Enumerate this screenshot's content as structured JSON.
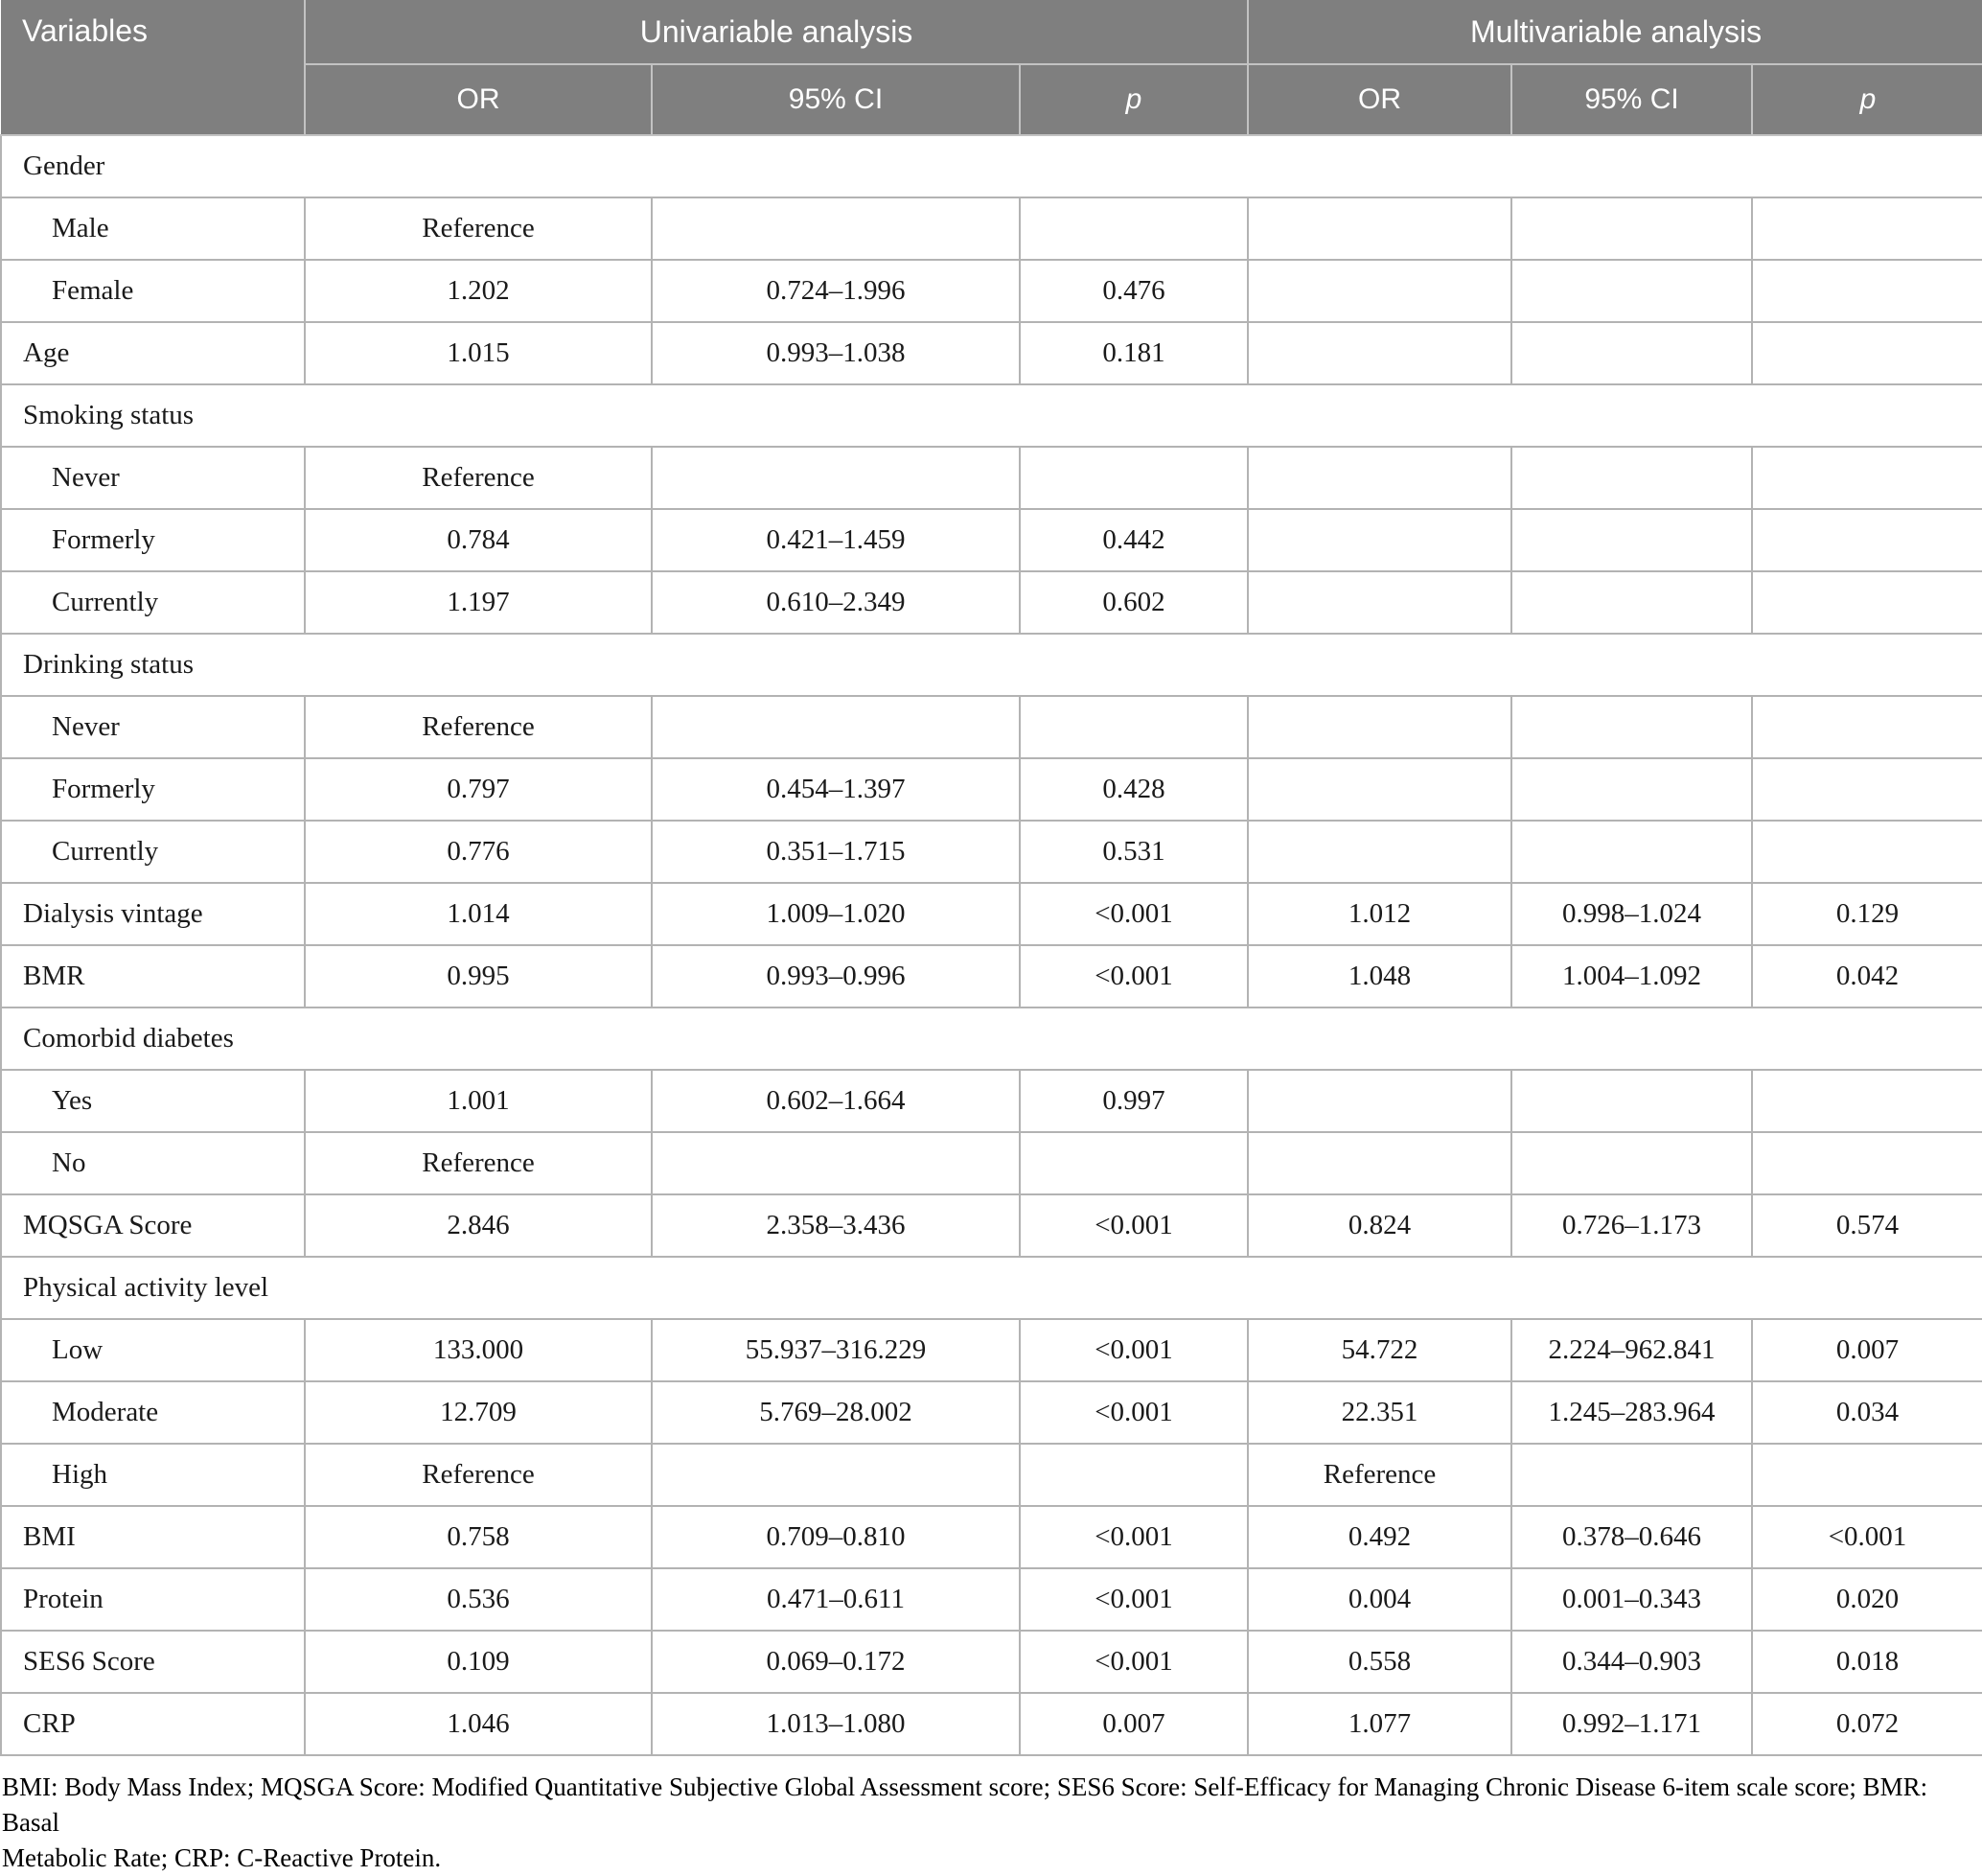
{
  "table": {
    "header": {
      "variables": "Variables",
      "group1": "Univariable analysis",
      "group2": "Multivariable analysis",
      "sub": {
        "or": "OR",
        "ci": "95% CI",
        "p": "p"
      }
    },
    "rows": [
      {
        "type": "section",
        "label": "Gender"
      },
      {
        "type": "data",
        "indent": true,
        "label": "Male",
        "cells": [
          "Reference",
          "",
          "",
          "",
          "",
          ""
        ]
      },
      {
        "type": "data",
        "indent": true,
        "label": "Female",
        "cells": [
          "1.202",
          "0.724–1.996",
          "0.476",
          "",
          "",
          ""
        ]
      },
      {
        "type": "data",
        "indent": false,
        "label": "Age",
        "cells": [
          "1.015",
          "0.993–1.038",
          "0.181",
          "",
          "",
          ""
        ]
      },
      {
        "type": "section",
        "label": "Smoking status"
      },
      {
        "type": "data",
        "indent": true,
        "label": "Never",
        "cells": [
          "Reference",
          "",
          "",
          "",
          "",
          ""
        ]
      },
      {
        "type": "data",
        "indent": true,
        "label": "Formerly",
        "cells": [
          "0.784",
          "0.421–1.459",
          "0.442",
          "",
          "",
          ""
        ]
      },
      {
        "type": "data",
        "indent": true,
        "label": "Currently",
        "cells": [
          "1.197",
          "0.610–2.349",
          "0.602",
          "",
          "",
          ""
        ]
      },
      {
        "type": "section",
        "label": "Drinking status"
      },
      {
        "type": "data",
        "indent": true,
        "label": "Never",
        "cells": [
          "Reference",
          "",
          "",
          "",
          "",
          ""
        ]
      },
      {
        "type": "data",
        "indent": true,
        "label": "Formerly",
        "cells": [
          "0.797",
          "0.454–1.397",
          "0.428",
          "",
          "",
          ""
        ]
      },
      {
        "type": "data",
        "indent": true,
        "label": "Currently",
        "cells": [
          "0.776",
          "0.351–1.715",
          "0.531",
          "",
          "",
          ""
        ]
      },
      {
        "type": "data",
        "indent": false,
        "label": "Dialysis vintage",
        "cells": [
          "1.014",
          "1.009–1.020",
          "<0.001",
          "1.012",
          "0.998–1.024",
          "0.129"
        ]
      },
      {
        "type": "data",
        "indent": false,
        "label": "BMR",
        "cells": [
          "0.995",
          "0.993–0.996",
          "<0.001",
          "1.048",
          "1.004–1.092",
          "0.042"
        ]
      },
      {
        "type": "section",
        "label": "Comorbid diabetes"
      },
      {
        "type": "data",
        "indent": true,
        "label": "Yes",
        "cells": [
          "1.001",
          "0.602–1.664",
          "0.997",
          "",
          "",
          ""
        ]
      },
      {
        "type": "data",
        "indent": true,
        "label": "No",
        "cells": [
          "Reference",
          "",
          "",
          "",
          "",
          ""
        ]
      },
      {
        "type": "data",
        "indent": false,
        "label": "MQSGA Score",
        "cells": [
          "2.846",
          "2.358–3.436",
          "<0.001",
          "0.824",
          "0.726–1.173",
          "0.574"
        ]
      },
      {
        "type": "section",
        "label": "Physical activity level"
      },
      {
        "type": "data",
        "indent": true,
        "label": "Low",
        "cells": [
          "133.000",
          "55.937–316.229",
          "<0.001",
          "54.722",
          "2.224–962.841",
          "0.007"
        ]
      },
      {
        "type": "data",
        "indent": true,
        "label": "Moderate",
        "cells": [
          "12.709",
          "5.769–28.002",
          "<0.001",
          "22.351",
          "1.245–283.964",
          "0.034"
        ]
      },
      {
        "type": "data",
        "indent": true,
        "label": "High",
        "cells": [
          "Reference",
          "",
          "",
          "Reference",
          "",
          ""
        ]
      },
      {
        "type": "data",
        "indent": false,
        "label": "BMI",
        "cells": [
          "0.758",
          "0.709–0.810",
          "<0.001",
          "0.492",
          "0.378–0.646",
          "<0.001"
        ]
      },
      {
        "type": "data",
        "indent": false,
        "label": "Protein",
        "cells": [
          "0.536",
          "0.471–0.611",
          "<0.001",
          "0.004",
          "0.001–0.343",
          "0.020"
        ]
      },
      {
        "type": "data",
        "indent": false,
        "label": "SES6 Score",
        "cells": [
          "0.109",
          "0.069–0.172",
          "<0.001",
          "0.558",
          "0.344–0.903",
          "0.018"
        ]
      },
      {
        "type": "data",
        "indent": false,
        "label": "CRP",
        "cells": [
          "1.046",
          "1.013–1.080",
          "0.007",
          "1.077",
          "0.992–1.171",
          "0.072"
        ]
      }
    ],
    "footnote_lines": [
      "BMI: Body Mass Index; MQSGA Score: Modified Quantitative Subjective Global Assessment score; SES6 Score: Self-Efficacy for Managing Chronic Disease 6-item scale score; BMR: Basal",
      "Metabolic Rate; CRP: C-Reactive Protein."
    ]
  },
  "colors": {
    "header_bg": "#7f7f7f",
    "header_text": "#ffffff",
    "body_border": "#b3b3b3",
    "header_border": "#c2c2c2",
    "text": "#1a1a1a"
  }
}
